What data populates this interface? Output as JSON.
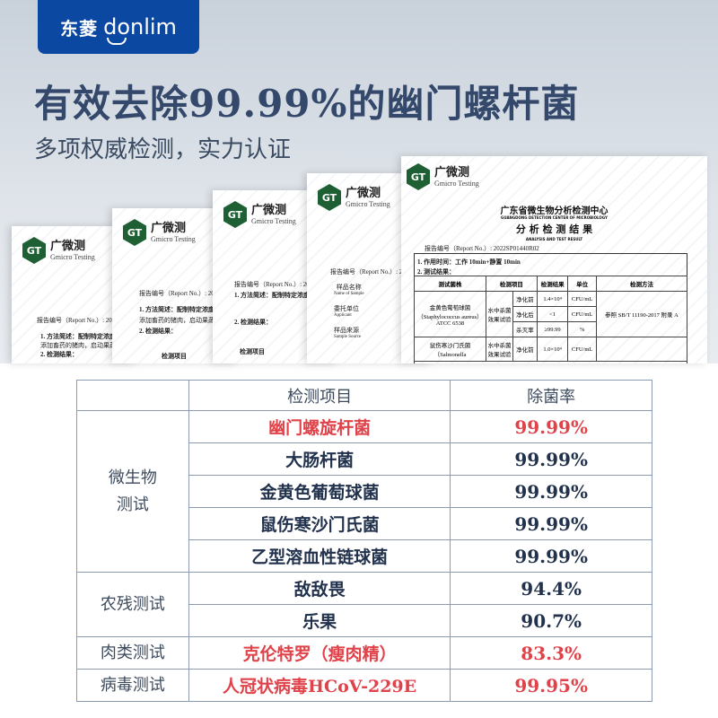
{
  "brand": {
    "cn": "东菱",
    "en": "donlim",
    "color": "#0b48a1"
  },
  "headline": "有效去除99.99%的幽门螺杆菌",
  "subheadline": "多项权威检测，实力认证",
  "certificates": {
    "lab_cn": "广微测",
    "lab_en": "Gmicro Testing",
    "lab_mark": "GT",
    "report_no_label": "报告编号（Report No.）: 2022S",
    "main": {
      "center": "广东省微生物分析检测中心",
      "center_en": "GUANGDONG DETECTION CENTER OF MICROBIOLOGY",
      "title": "分 析 检 测 结 果",
      "title_en": "ANALYSIS AND TEST RESULT",
      "report_no": "报告编号（Report No.）: 2022SP01440R02",
      "s1": "1. 作用时间：工作 10min+静置 10min",
      "s2": "2. 测试结果：",
      "headers": [
        "测试菌株",
        "检测项目",
        "检测结果",
        "单位",
        "检测方法"
      ],
      "strain1": "金黄色葡萄球菌（Staphylococcus aureus）ATCC 6538",
      "test": "水中杀菌效果试验",
      "rows": [
        [
          "净化前",
          "1.4×10⁴",
          "CFU/mL"
        ],
        [
          "净化后",
          "<1",
          "CFU/mL"
        ],
        [
          "杀灭率",
          "≥99.99",
          "%"
        ]
      ],
      "method": "参照 SB/T 11190-2017 附录 A",
      "strain2": "鼠伤寒沙门氏菌（Salmonella",
      "row4": [
        "净化前",
        "1.0×10⁴",
        "CFU/mL"
      ]
    },
    "card_texts": {
      "method_desc": "1. 方法简述：配制特定浓度的",
      "added": "添加畜药的猪肉，启动果蔬净",
      "results": "2. 检测结果：",
      "item": "检测项目",
      "sample_name": "样品名称",
      "sample_name_en": "Name of Sample",
      "applicant": "委托单位",
      "applicant_en": "Applicant",
      "source": "样品来源",
      "source_en": "Sample Source"
    }
  },
  "table": {
    "headers": [
      "",
      "检测项目",
      "除菌率"
    ],
    "groups": [
      {
        "category": "微生物测试",
        "rows": [
          {
            "item": "幽门螺旋杆菌",
            "rate": "99.99%",
            "highlight": true
          },
          {
            "item": "大肠杆菌",
            "rate": "99.99%",
            "highlight": false
          },
          {
            "item": "金黄色葡萄球菌",
            "rate": "99.99%",
            "highlight": false
          },
          {
            "item": "鼠伤寒沙门氏菌",
            "rate": "99.99%",
            "highlight": false
          },
          {
            "item": "乙型溶血性链球菌",
            "rate": "99.99%",
            "highlight": false
          }
        ]
      },
      {
        "category": "农残测试",
        "rows": [
          {
            "item": "敌敌畏",
            "rate": "94.4%",
            "highlight": false
          },
          {
            "item": "乐果",
            "rate": "90.7%",
            "highlight": false
          }
        ]
      },
      {
        "category": "肉类测试",
        "rows": [
          {
            "item": "克伦特罗（瘦肉精）",
            "rate": "83.3%",
            "highlight": true
          }
        ]
      },
      {
        "category": "病毒测试",
        "rows": [
          {
            "item": "人冠状病毒HCoV-229E",
            "rate": "99.95%",
            "highlight": true
          }
        ]
      }
    ],
    "colors": {
      "highlight": "#e0424a",
      "normal": "#22324d",
      "border": "#8a9bb3"
    }
  }
}
